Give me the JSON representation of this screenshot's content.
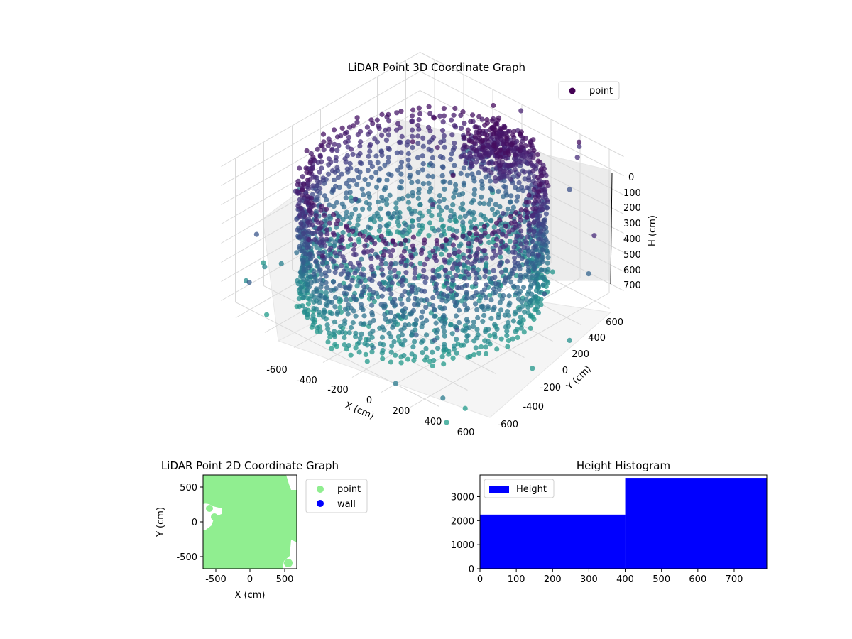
{
  "chart_data": [
    {
      "type": "scatter",
      "title": "LiDAR Point 3D Coordinate Graph",
      "xlabel": "X (cm)",
      "ylabel": "Y (cm)",
      "zlabel": "H (cm)",
      "xlim": [
        -700,
        700
      ],
      "ylim": [
        -700,
        700
      ],
      "zlim": [
        0,
        750
      ],
      "z_axis_inverted": true,
      "x_ticks": [
        "-600",
        "-400",
        "-200",
        "0",
        "200",
        "400",
        "600"
      ],
      "y_ticks": [
        "-600",
        "-400",
        "-200",
        "0",
        "200",
        "400",
        "600"
      ],
      "z_ticks": [
        "0",
        "100",
        "200",
        "300",
        "400",
        "500",
        "600",
        "700"
      ],
      "grid": true,
      "colormap": "viridis (by height)",
      "legend": {
        "position": "top-right",
        "entries": [
          {
            "label": "point",
            "color": "#440154"
          }
        ]
      },
      "series": [
        {
          "name": "point",
          "description_of_shape": "cylindrical wall of points around origin, radius ~600 cm, heights 0-750 cm, plus a dense cluster at top near (0,300) and scattered outliers",
          "sample_points": [
            {
              "x": -600,
              "y": 0,
              "h": 350
            },
            {
              "x": 600,
              "y": 0,
              "h": 350
            },
            {
              "x": 0,
              "y": -600,
              "h": 350
            },
            {
              "x": 0,
              "y": 600,
              "h": 350
            },
            {
              "x": -50,
              "y": 300,
              "h": 120
            },
            {
              "x": 450,
              "y": -450,
              "h": 600
            },
            {
              "x": -450,
              "y": 450,
              "h": 150
            }
          ]
        }
      ]
    },
    {
      "type": "scatter",
      "title": "LiDAR Point 2D Coordinate Graph",
      "xlabel": "X (cm)",
      "ylabel": "Y (cm)",
      "xlim": [
        -680,
        680
      ],
      "ylim": [
        -680,
        680
      ],
      "x_ticks": [
        "-500",
        "0",
        "500"
      ],
      "y_ticks": [
        "-500",
        "0",
        "500"
      ],
      "legend": {
        "position": "outside-right",
        "entries": [
          {
            "label": "point",
            "color": "#90ee90"
          },
          {
            "label": "wall",
            "color": "#0000ff"
          }
        ]
      },
      "series": [
        {
          "name": "point",
          "color": "#90ee90",
          "coverage": "nearly full square, white gaps at left edge near y≈150 and corners"
        },
        {
          "name": "wall",
          "color": "#0000ff",
          "values": []
        }
      ]
    },
    {
      "type": "bar",
      "title": "Height Histogram",
      "xlim": [
        0,
        790
      ],
      "ylim": [
        0,
        3900
      ],
      "x_ticks": [
        "0",
        "100",
        "200",
        "300",
        "400",
        "500",
        "600",
        "700"
      ],
      "y_ticks": [
        "0",
        "1000",
        "2000",
        "3000"
      ],
      "legend": {
        "position": "top-left",
        "entries": [
          {
            "label": "Height",
            "color": "#0000ff"
          }
        ]
      },
      "series": [
        {
          "name": "Height",
          "color": "#0000ff",
          "bins": [
            {
              "from": 0,
              "to": 400,
              "count": 2250
            },
            {
              "from": 400,
              "to": 790,
              "count": 3780
            }
          ]
        }
      ]
    }
  ]
}
